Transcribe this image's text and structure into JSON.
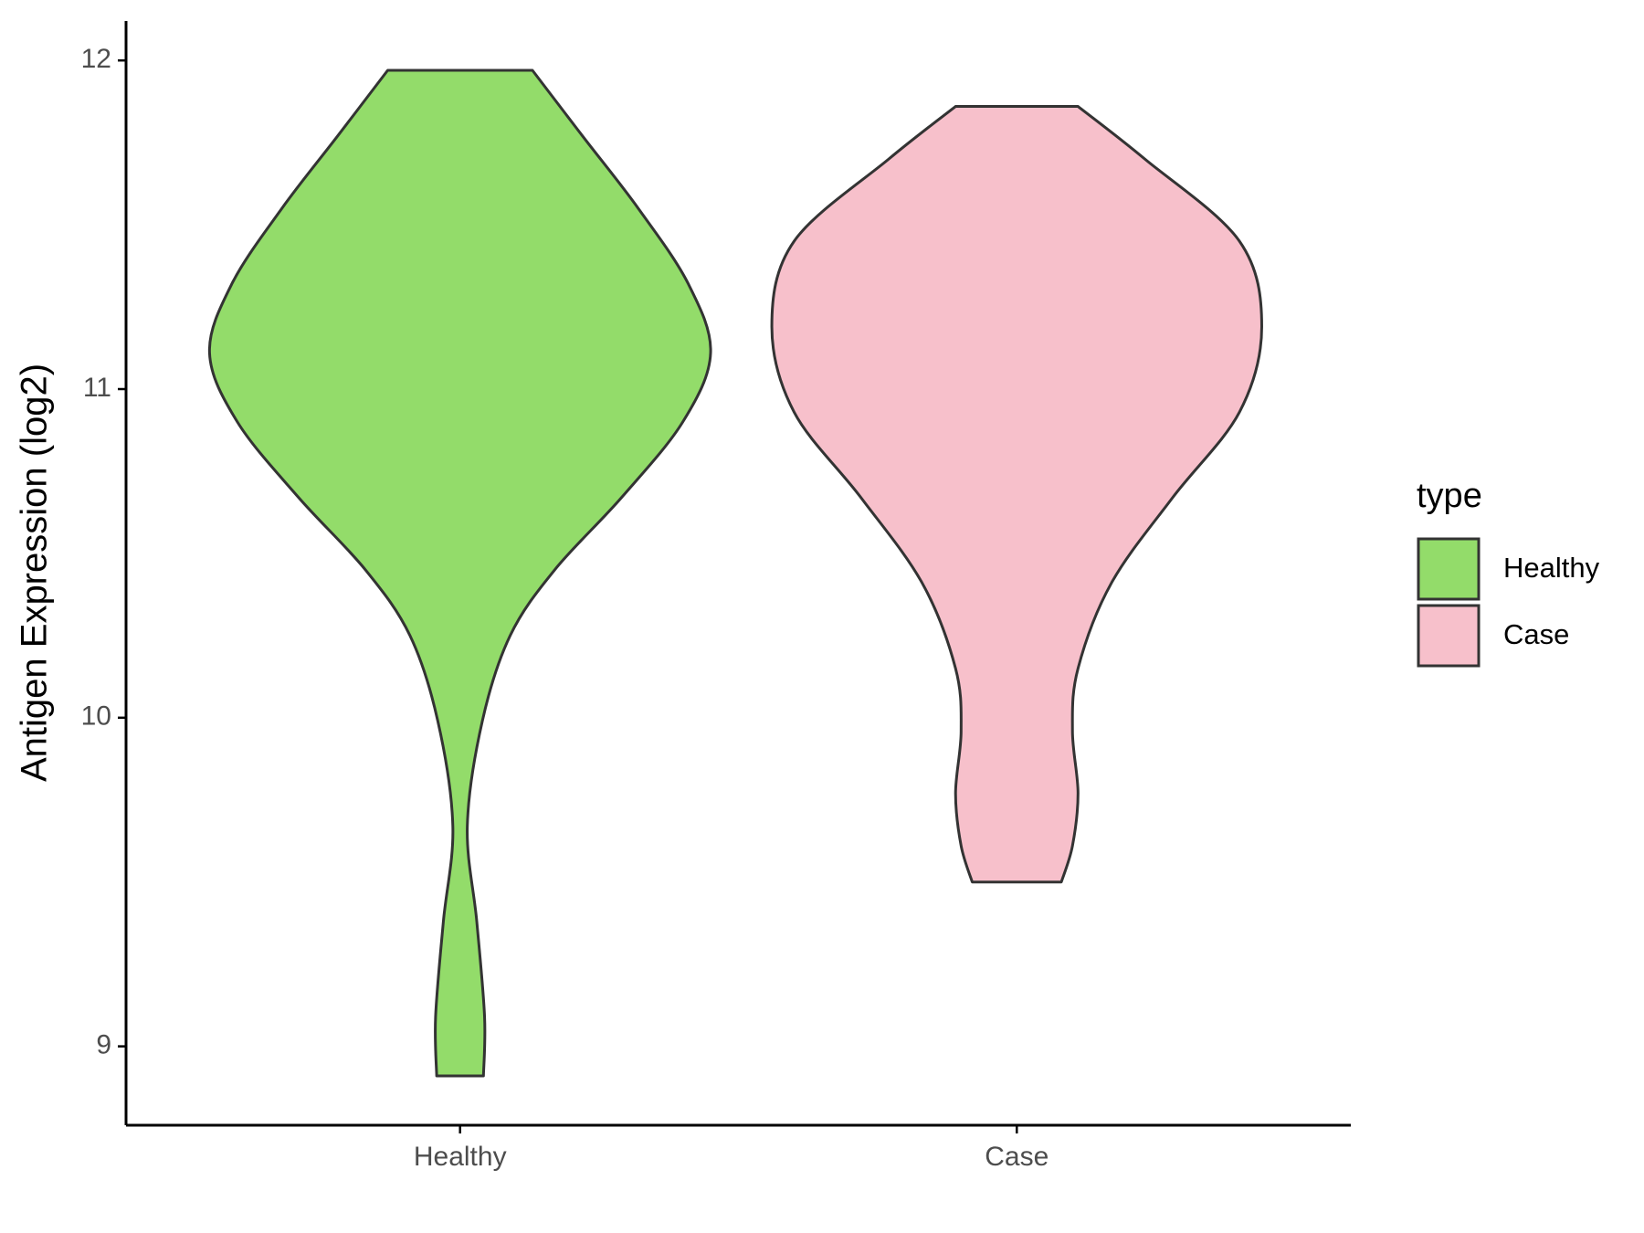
{
  "chart_data": {
    "type": "violin",
    "y_label": "Antigen Expression (log2)",
    "categories": [
      "Healthy",
      "Case"
    ],
    "legend_title": "type",
    "legend": "right",
    "series": [
      {
        "name": "Healthy",
        "color": "#93dc6a",
        "y": [
          11.97,
          11.77,
          11.55,
          11.32,
          11.11,
          10.9,
          10.67,
          10.45,
          10.25,
          9.99,
          9.67,
          9.38,
          9.09,
          8.91
        ],
        "widths": [
          0.13,
          0.22,
          0.32,
          0.41,
          0.45,
          0.4,
          0.29,
          0.17,
          0.09,
          0.04,
          0.013,
          0.03,
          0.044,
          0.042
        ]
      },
      {
        "name": "Case",
        "color": "#f7c0cb",
        "y": [
          11.86,
          11.7,
          11.45,
          11.19,
          10.93,
          10.67,
          10.41,
          10.15,
          9.96,
          9.77,
          9.61,
          9.5
        ],
        "widths": [
          0.11,
          0.23,
          0.4,
          0.44,
          0.4,
          0.28,
          0.17,
          0.11,
          0.1,
          0.11,
          0.1,
          0.08
        ]
      }
    ],
    "ylim": [
      8.76,
      12.12
    ],
    "yticks": [
      9,
      10,
      11,
      12
    ],
    "grid": false
  }
}
